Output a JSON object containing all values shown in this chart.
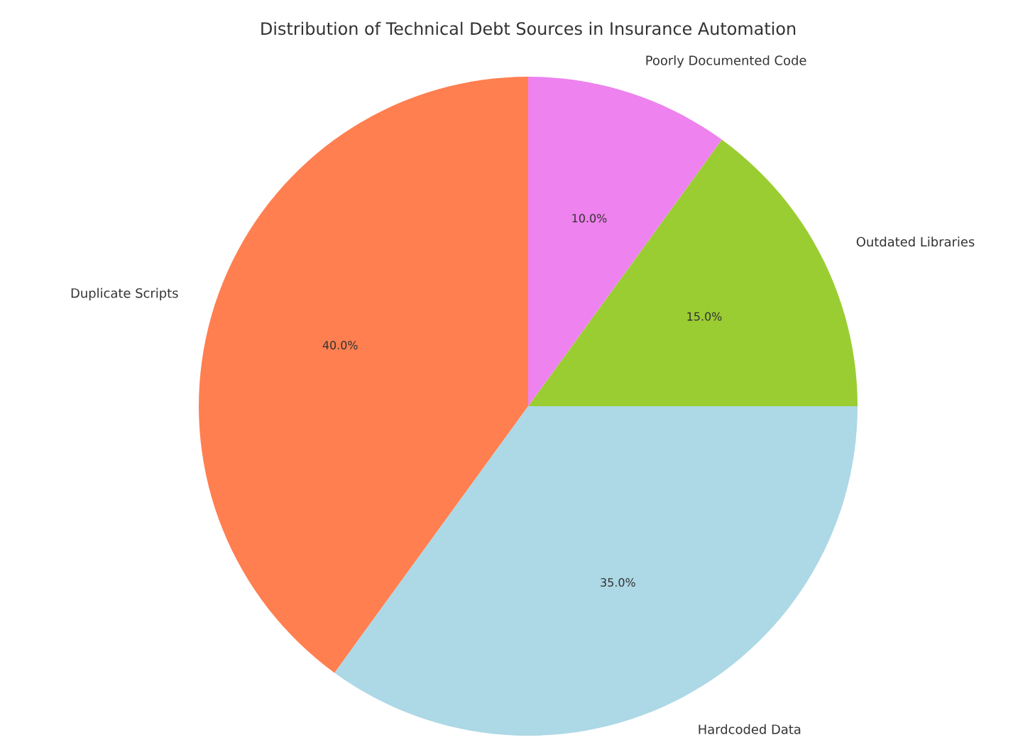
{
  "chart_data": {
    "type": "pie",
    "title": "Distribution of Technical Debt Sources in Insurance Automation",
    "categories": [
      "Duplicate Scripts",
      "Hardcoded Data",
      "Outdated Libraries",
      "Poorly Documented Code"
    ],
    "values": [
      40,
      35,
      15,
      10
    ],
    "value_labels": [
      "40.0%",
      "35.0%",
      "15.0%",
      "10.0%"
    ],
    "colors": [
      "#ff7f50",
      "#add8e6",
      "#9acd32",
      "#ee82ee"
    ]
  }
}
